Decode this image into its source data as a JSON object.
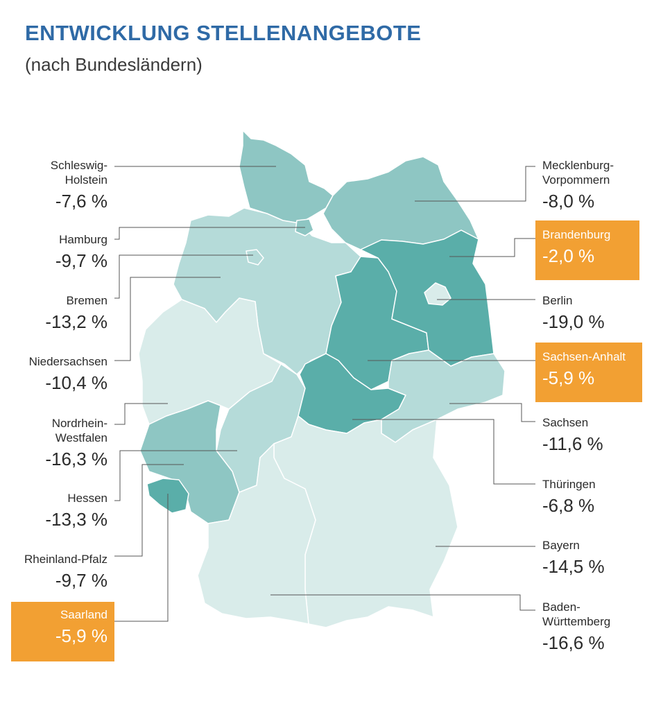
{
  "title": "ENTWICKLUNG STELLENANGEBOTE",
  "subtitle": "(nach Bundesländern)",
  "colors": {
    "darkest": "#5aaea9",
    "dark": "#8ec6c3",
    "medium": "#b5dbd9",
    "light": "#d9ecea",
    "highlight": "#f2a033"
  },
  "regions": [
    {
      "id": "schleswig-holstein",
      "name": "Schleswig-\nHolstein",
      "value": "-7,6 %",
      "highlight": false
    },
    {
      "id": "hamburg",
      "name": "Hamburg",
      "value": "-9,7 %",
      "highlight": false
    },
    {
      "id": "bremen",
      "name": "Bremen",
      "value": "-13,2 %",
      "highlight": false
    },
    {
      "id": "niedersachsen",
      "name": "Niedersachsen",
      "value": "-10,4 %",
      "highlight": false
    },
    {
      "id": "nordrhein-westfalen",
      "name": "Nordrhein-\nWestfalen",
      "value": "-16,3 %",
      "highlight": false
    },
    {
      "id": "hessen",
      "name": "Hessen",
      "value": "-13,3 %",
      "highlight": false
    },
    {
      "id": "rheinland-pfalz",
      "name": "Rheinland-Pfalz",
      "value": "-9,7 %",
      "highlight": false
    },
    {
      "id": "saarland",
      "name": "Saarland",
      "value": "-5,9 %",
      "highlight": true
    },
    {
      "id": "mecklenburg-vorpommern",
      "name": "Mecklenburg-\nVorpommern",
      "value": "-8,0 %",
      "highlight": false
    },
    {
      "id": "brandenburg",
      "name": "Brandenburg",
      "value": "-2,0 %",
      "highlight": true
    },
    {
      "id": "berlin",
      "name": "Berlin",
      "value": "-19,0 %",
      "highlight": false
    },
    {
      "id": "sachsen-anhalt",
      "name": "Sachsen-Anhalt",
      "value": "-5,9 %",
      "highlight": true
    },
    {
      "id": "sachsen",
      "name": "Sachsen",
      "value": "-11,6 %",
      "highlight": false
    },
    {
      "id": "thueringen",
      "name": "Thüringen",
      "value": "-6,8 %",
      "highlight": false
    },
    {
      "id": "bayern",
      "name": "Bayern",
      "value": "-14,5 %",
      "highlight": false
    },
    {
      "id": "baden-wuerttemberg",
      "name": "Baden-\nWürttemberg",
      "value": "-16,6 %",
      "highlight": false
    }
  ]
}
